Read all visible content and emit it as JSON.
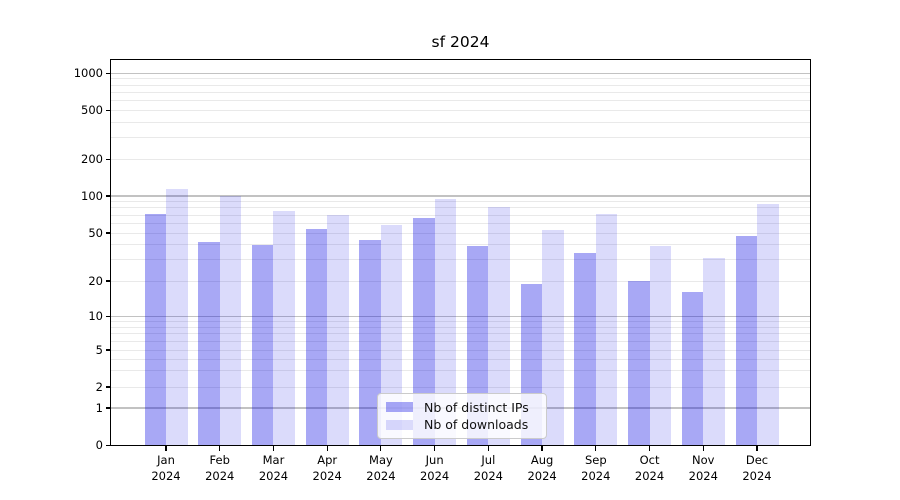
{
  "title": "sf 2024",
  "chart_data": {
    "type": "bar",
    "title": "sf 2024",
    "categories": [
      "Jan",
      "Feb",
      "Mar",
      "Apr",
      "May",
      "Jun",
      "Jul",
      "Aug",
      "Sep",
      "Oct",
      "Nov",
      "Dec"
    ],
    "category_year": "2024",
    "series": [
      {
        "name": "Nb of distinct IPs",
        "color": "rgba(0,0,225,0.34)",
        "values": [
          72,
          42,
          40,
          54,
          44,
          66,
          39,
          19,
          34,
          20,
          16,
          47
        ]
      },
      {
        "name": "Nb of downloads",
        "color": "rgba(0,0,225,0.14)",
        "values": [
          115,
          100,
          76,
          70,
          58,
          95,
          82,
          53,
          71,
          39,
          31,
          86
        ]
      }
    ],
    "yscale": "symlog",
    "yticks": [
      0,
      1,
      2,
      5,
      10,
      20,
      50,
      100,
      200,
      500,
      1000
    ],
    "ylim": [
      0,
      1300
    ],
    "grid": true,
    "legend_position": "lower center"
  }
}
